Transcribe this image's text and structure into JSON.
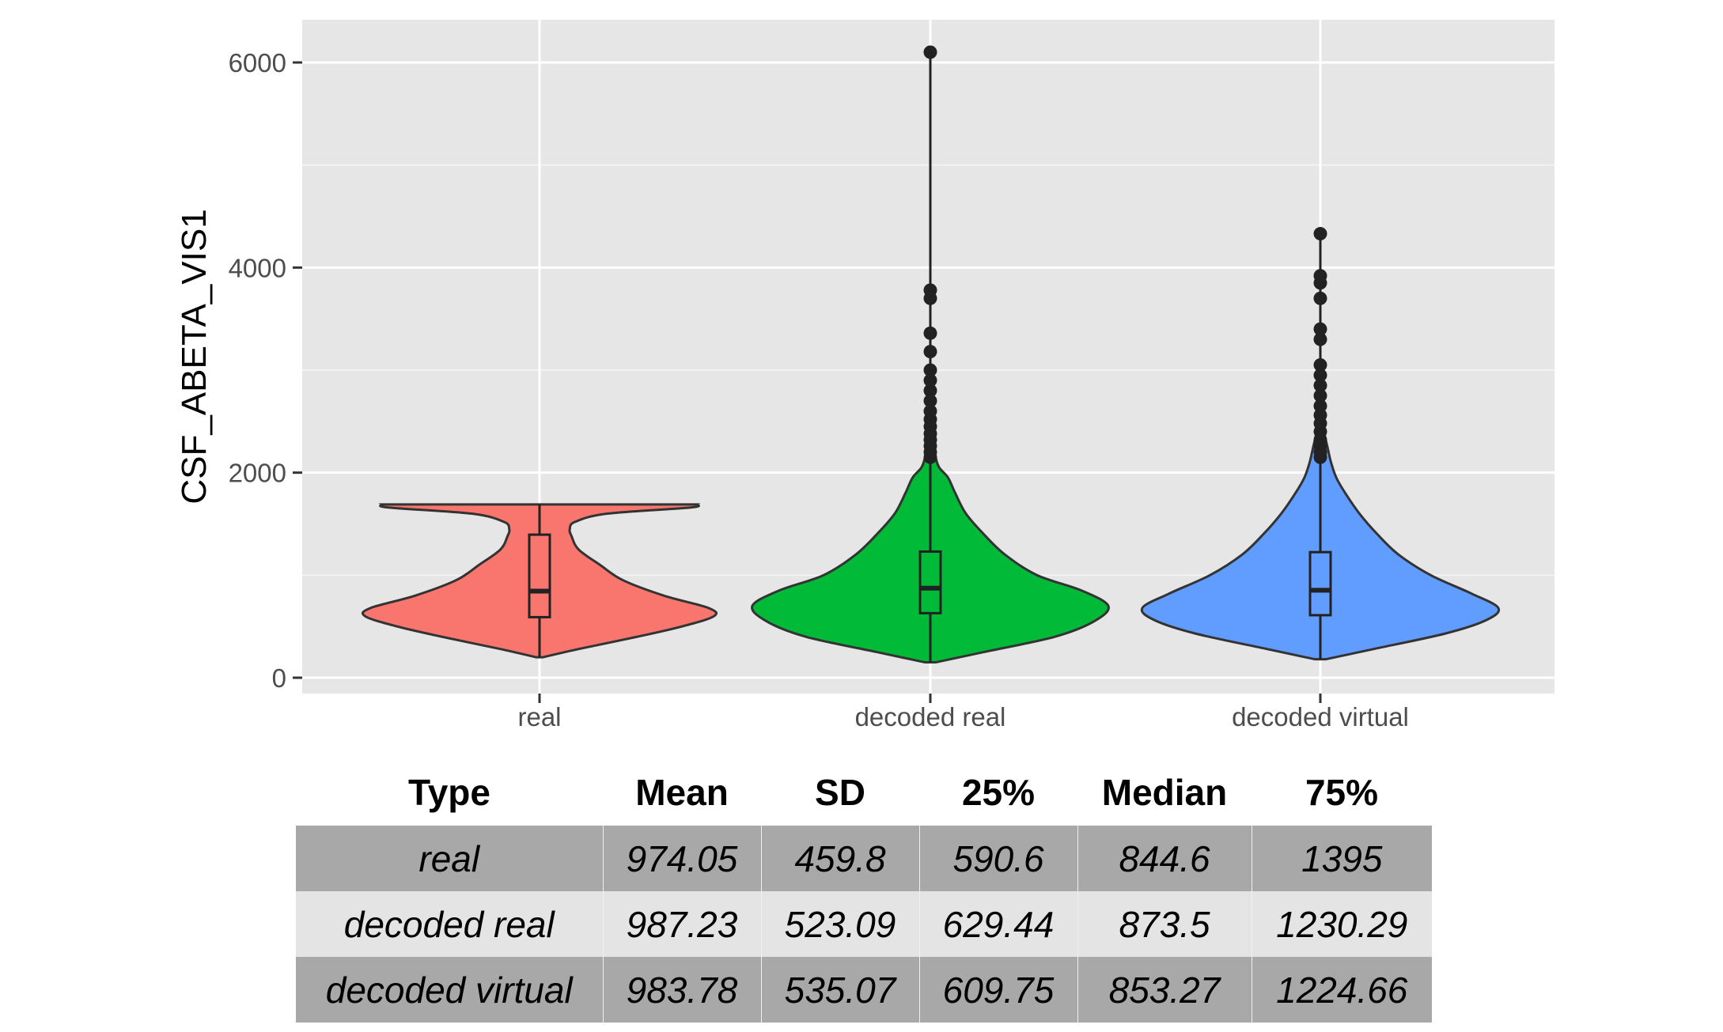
{
  "chart_data": {
    "type": "violin",
    "title": "",
    "xlabel": "",
    "ylabel": "CSF_ABETA_VIS1",
    "categories": [
      "real",
      "decoded real",
      "decoded virtual"
    ],
    "ylim": [
      -130,
      6400
    ],
    "yticks": [
      0,
      2000,
      4000,
      6000
    ],
    "grid": true,
    "legend": "none",
    "colors": [
      "#F8766D",
      "#00BA38",
      "#619CFF"
    ],
    "series": [
      {
        "category": "real",
        "min": 200,
        "q1": 590.6,
        "median": 844.6,
        "q3": 1395,
        "max": 1690,
        "outliers": [],
        "density": [
          [
            200,
            0.02
          ],
          [
            280,
            0.22
          ],
          [
            400,
            0.55
          ],
          [
            500,
            0.8
          ],
          [
            600,
            0.98
          ],
          [
            680,
            0.95
          ],
          [
            800,
            0.7
          ],
          [
            950,
            0.47
          ],
          [
            1100,
            0.34
          ],
          [
            1250,
            0.22
          ],
          [
            1380,
            0.18
          ],
          [
            1450,
            0.17
          ],
          [
            1520,
            0.2
          ],
          [
            1600,
            0.38
          ],
          [
            1660,
            0.85
          ],
          [
            1690,
            0.88
          ]
        ]
      },
      {
        "category": "decoded real",
        "min": 150,
        "q1": 629.44,
        "median": 873.5,
        "q3": 1230.29,
        "max": 6100,
        "outliers": [
          2150,
          2200,
          2260,
          2320,
          2380,
          2450,
          2520,
          2600,
          2700,
          2800,
          2900,
          3000,
          3180,
          3360,
          3700,
          3780,
          6100
        ],
        "density": [
          [
            150,
            0.03
          ],
          [
            250,
            0.3
          ],
          [
            400,
            0.7
          ],
          [
            550,
            0.92
          ],
          [
            700,
            1.0
          ],
          [
            850,
            0.85
          ],
          [
            1000,
            0.6
          ],
          [
            1200,
            0.42
          ],
          [
            1400,
            0.3
          ],
          [
            1600,
            0.2
          ],
          [
            1800,
            0.14
          ],
          [
            1950,
            0.1
          ],
          [
            2050,
            0.05
          ],
          [
            2150,
            0.03
          ],
          [
            2300,
            0.02
          ],
          [
            2500,
            0.01
          ]
        ]
      },
      {
        "category": "decoded virtual",
        "min": 180,
        "q1": 609.75,
        "median": 853.27,
        "q3": 1224.66,
        "max": 4330,
        "outliers": [
          2150,
          2200,
          2260,
          2320,
          2400,
          2480,
          2560,
          2650,
          2750,
          2850,
          2950,
          3050,
          3300,
          3400,
          3700,
          3850,
          3920,
          4330
        ],
        "density": [
          [
            180,
            0.03
          ],
          [
            280,
            0.3
          ],
          [
            430,
            0.7
          ],
          [
            560,
            0.93
          ],
          [
            680,
            1.0
          ],
          [
            820,
            0.85
          ],
          [
            1000,
            0.62
          ],
          [
            1200,
            0.44
          ],
          [
            1400,
            0.32
          ],
          [
            1600,
            0.22
          ],
          [
            1800,
            0.14
          ],
          [
            1950,
            0.09
          ],
          [
            2100,
            0.06
          ],
          [
            2250,
            0.04
          ],
          [
            2400,
            0.02
          ],
          [
            2500,
            0.01
          ]
        ]
      }
    ]
  },
  "table": {
    "headers": [
      "Type",
      "Mean",
      "SD",
      "25%",
      "Median",
      "75%"
    ],
    "rows": [
      [
        "real",
        "974.05",
        "459.8",
        "590.6",
        "844.6",
        "1395"
      ],
      [
        "decoded real",
        "987.23",
        "523.09",
        "629.44",
        "873.5",
        "1230.29"
      ],
      [
        "decoded virtual",
        "983.78",
        "535.07",
        "609.75",
        "853.27",
        "1224.66"
      ]
    ]
  }
}
